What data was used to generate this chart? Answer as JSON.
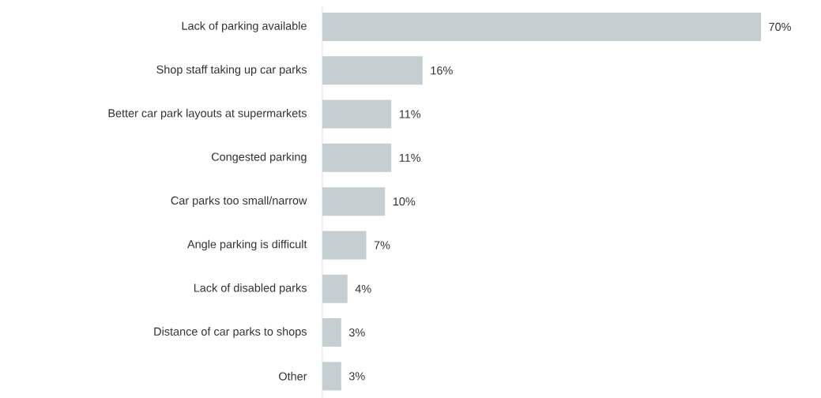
{
  "chart_data": {
    "type": "bar",
    "orientation": "horizontal",
    "categories": [
      "Lack of parking available",
      "Shop staff taking up car parks",
      "Better car park layouts at supermarkets",
      "Congested parking",
      "Car parks too small/narrow",
      "Angle parking is difficult",
      "Lack of disabled parks",
      "Distance of car parks to shops",
      "Other"
    ],
    "values": [
      70,
      16,
      11,
      11,
      10,
      7,
      4,
      3,
      3
    ],
    "value_labels": [
      "70%",
      "16%",
      "11%",
      "11%",
      "10%",
      "7%",
      "4%",
      "3%",
      "3%"
    ],
    "color": "#c5ced1"
  }
}
